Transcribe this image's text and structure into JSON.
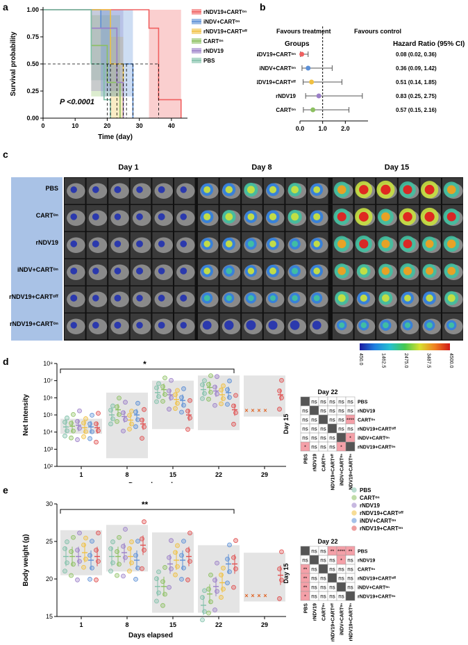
{
  "labels": {
    "a": "a",
    "b": "b",
    "c": "c",
    "d": "d",
    "e": "e"
  },
  "panel_a": {
    "ylabel": "Survival probability",
    "xlabel": "Time (day)",
    "pvalue": "P <0.0001",
    "yticks": [
      "0.00",
      "0.25",
      "0.50",
      "0.75",
      "1.00"
    ],
    "xticks": [
      "0",
      "10",
      "20",
      "30",
      "40"
    ],
    "legend": [
      {
        "name": "rNDV19+CARTᵒⁿ",
        "color": "#f06060"
      },
      {
        "name": "iNDV+CARTᵒⁿ",
        "color": "#5b8fd6"
      },
      {
        "name": "rNDV19+CARTᵒᶠᶠ",
        "color": "#f0c040"
      },
      {
        "name": "CARTᵒⁿ",
        "color": "#8cc060"
      },
      {
        "name": "rNDV19",
        "color": "#9b7fc8"
      },
      {
        "name": "PBS",
        "color": "#7fc0a8"
      }
    ]
  },
  "panel_b": {
    "title_groups": "Groups",
    "favours_treatment": "Favours treatment",
    "favours_control": "Favours control",
    "hr_header": "Hazard Ratio (95% CI)",
    "xticks": [
      "0.0",
      "1.0",
      "2.0"
    ],
    "rows": [
      {
        "group": "rNDV19+CARTᵒⁿ",
        "hr": 0.08,
        "lo": 0.02,
        "hi": 0.36,
        "text": "0.08 (0.02, 0.36)",
        "color": "#f06060"
      },
      {
        "group": "iNDV+CARTᵒⁿ",
        "hr": 0.36,
        "lo": 0.09,
        "hi": 1.42,
        "text": "0.36 (0.09, 1.42)",
        "color": "#5b8fd6"
      },
      {
        "group": "rNDV19+CARTᵒᶠᶠ",
        "hr": 0.51,
        "lo": 0.14,
        "hi": 1.85,
        "text": "0.51 (0.14, 1.85)",
        "color": "#f0c040"
      },
      {
        "group": "rNDV19",
        "hr": 0.83,
        "lo": 0.25,
        "hi": 2.75,
        "text": "0.83 (0.25, 2.75)",
        "color": "#9b7fc8"
      },
      {
        "group": "CARTᵒⁿ",
        "hr": 0.57,
        "lo": 0.15,
        "hi": 2.16,
        "text": "0.57 (0.15, 2.16)",
        "color": "#8cc060"
      }
    ]
  },
  "panel_c": {
    "days": [
      {
        "label": "Day 1",
        "color": "#e6a6e6"
      },
      {
        "label": "Day 8",
        "color": "#b8a6de"
      },
      {
        "label": "Day 15",
        "color": "#8e72b6"
      }
    ],
    "groups": [
      "PBS",
      "CARTᵒⁿ",
      "rNDV19",
      "iNDV+CARTᵒⁿ",
      "rNDV19+CARTᵒᶠᶠ",
      "rNDV19+CARTᵒⁿ"
    ],
    "colorbar_ticks": [
      "450.0",
      "1462.5",
      "2475.0",
      "3487.5",
      "4500.0"
    ]
  },
  "panel_d": {
    "ylabel": "Net Intensity",
    "xlabel": "Days elapsed",
    "xticks": [
      "1",
      "8",
      "15",
      "22",
      "29"
    ],
    "yticks": [
      "10²",
      "10³",
      "10⁴",
      "10⁵",
      "10⁶",
      "10⁷",
      "10⁸"
    ],
    "sig": "*",
    "matrix_title": "Day 22",
    "matrix_side": "Day 15"
  },
  "panel_e": {
    "ylabel": "Body weight (g)",
    "xlabel": "Days elapsed",
    "xticks": [
      "1",
      "8",
      "15",
      "22",
      "29"
    ],
    "yticks": [
      "15",
      "20",
      "25",
      "30"
    ],
    "sig": "**",
    "matrix_title": "Day 22",
    "matrix_side": "Day 15"
  },
  "legend_de": [
    {
      "name": "PBS",
      "color": "#7fc0a8"
    },
    {
      "name": "CARTᵒⁿ",
      "color": "#8cc060"
    },
    {
      "name": "rNDV19",
      "color": "#9b7fc8"
    },
    {
      "name": "rNDV19+CARTᵒᶠᶠ",
      "color": "#f0c040"
    },
    {
      "name": "iNDV+CARTᵒⁿ",
      "color": "#5b8fd6"
    },
    {
      "name": "rNDV19+CARTᵒⁿ",
      "color": "#e05050"
    }
  ],
  "matrix_labels": [
    "PBS",
    "rNDV19",
    "CARTᵒⁿ",
    "rNDV19+CARTᵒᶠᶠ",
    "iNDV+CARTᵒⁿ",
    "rNDV19+CARTᵒⁿ"
  ],
  "matrix_d": [
    [
      "",
      "ns",
      "ns",
      "ns",
      "ns",
      "ns"
    ],
    [
      "ns",
      "",
      "ns",
      "ns",
      "ns",
      "ns"
    ],
    [
      "ns",
      "ns",
      "",
      "ns",
      "ns",
      "****"
    ],
    [
      "ns",
      "ns",
      "ns",
      "",
      "ns",
      "ns"
    ],
    [
      "ns",
      "ns",
      "ns",
      "ns",
      "",
      "*"
    ],
    [
      "*",
      "ns",
      "ns",
      "ns",
      "*",
      ""
    ]
  ],
  "matrix_e": [
    [
      "",
      "ns",
      "ns",
      "**",
      "****",
      "**"
    ],
    [
      "ns",
      "",
      "ns",
      "ns",
      "*",
      "ns"
    ],
    [
      "**",
      "ns",
      "",
      "ns",
      "ns",
      "ns"
    ],
    [
      "**",
      "ns",
      "ns",
      "",
      "ns",
      "ns"
    ],
    [
      "**",
      "ns",
      "ns",
      "ns",
      "",
      "ns"
    ],
    [
      "*",
      "ns",
      "ns",
      "ns",
      "ns",
      ""
    ]
  ],
  "chart_data": [
    {
      "type": "line",
      "title": "",
      "xlabel": "Time (day)",
      "ylabel": "Survival probability",
      "xlim": [
        0,
        45
      ],
      "ylim": [
        0,
        1
      ],
      "series": [
        {
          "name": "rNDV19+CARTᵒⁿ",
          "x": [
            0,
            33,
            36,
            43
          ],
          "values": [
            1,
            0.83,
            0.17,
            0
          ]
        },
        {
          "name": "iNDV+CARTᵒⁿ",
          "x": [
            0,
            18,
            23,
            28
          ],
          "values": [
            1,
            0.83,
            0.5,
            0
          ]
        },
        {
          "name": "rNDV19+CARTᵒᶠᶠ",
          "x": [
            0,
            21,
            25
          ],
          "values": [
            1,
            0.5,
            0
          ]
        },
        {
          "name": "CARTᵒⁿ",
          "x": [
            0,
            15,
            20,
            24
          ],
          "values": [
            1,
            0.67,
            0.33,
            0
          ]
        },
        {
          "name": "rNDV19",
          "x": [
            0,
            15,
            23,
            25
          ],
          "values": [
            1,
            0.83,
            0.33,
            0
          ]
        },
        {
          "name": "PBS",
          "x": [
            0,
            15,
            19,
            21
          ],
          "values": [
            1,
            0.5,
            0.17,
            0
          ]
        }
      ]
    },
    {
      "type": "scatter",
      "xlabel": "Days elapsed",
      "ylabel": "Net Intensity",
      "log": true,
      "categories": [
        "1",
        "8",
        "15",
        "22",
        "29"
      ],
      "series": [
        {
          "name": "PBS",
          "values": [
            20000,
            100000,
            2000000,
            3000000,
            null
          ]
        },
        {
          "name": "CARTᵒⁿ",
          "values": [
            22000,
            200000,
            3000000,
            4000000,
            null
          ]
        },
        {
          "name": "rNDV19",
          "values": [
            25000,
            80000,
            1500000,
            2500000,
            null
          ]
        },
        {
          "name": "rNDV19+CARTᵒᶠᶠ",
          "values": [
            18000,
            50000,
            800000,
            1500000,
            null
          ]
        },
        {
          "name": "iNDV+CARTᵒⁿ",
          "values": [
            20000,
            100000,
            700000,
            2000000,
            null
          ]
        },
        {
          "name": "rNDV19+CARTᵒⁿ",
          "values": [
            18000,
            30000,
            100000,
            200000,
            1500000
          ]
        }
      ]
    },
    {
      "type": "scatter",
      "xlabel": "Days elapsed",
      "ylabel": "Body weight (g)",
      "categories": [
        "1",
        "8",
        "15",
        "22",
        "29"
      ],
      "series": [
        {
          "name": "PBS",
          "values": [
            23,
            23,
            19,
            16.5,
            null
          ]
        },
        {
          "name": "CARTᵒⁿ",
          "values": [
            23,
            23,
            19,
            18,
            null
          ]
        },
        {
          "name": "rNDV19",
          "values": [
            23,
            23.5,
            22,
            19,
            null
          ]
        },
        {
          "name": "rNDV19+CARTᵒᶠᶠ",
          "values": [
            23.5,
            23,
            22.5,
            19.5,
            null
          ]
        },
        {
          "name": "iNDV+CARTᵒⁿ",
          "values": [
            22.5,
            22.5,
            22.5,
            22,
            null
          ]
        },
        {
          "name": "rNDV19+CARTᵒⁿ",
          "values": [
            23,
            24.5,
            23,
            22,
            20.5
          ]
        }
      ]
    }
  ]
}
